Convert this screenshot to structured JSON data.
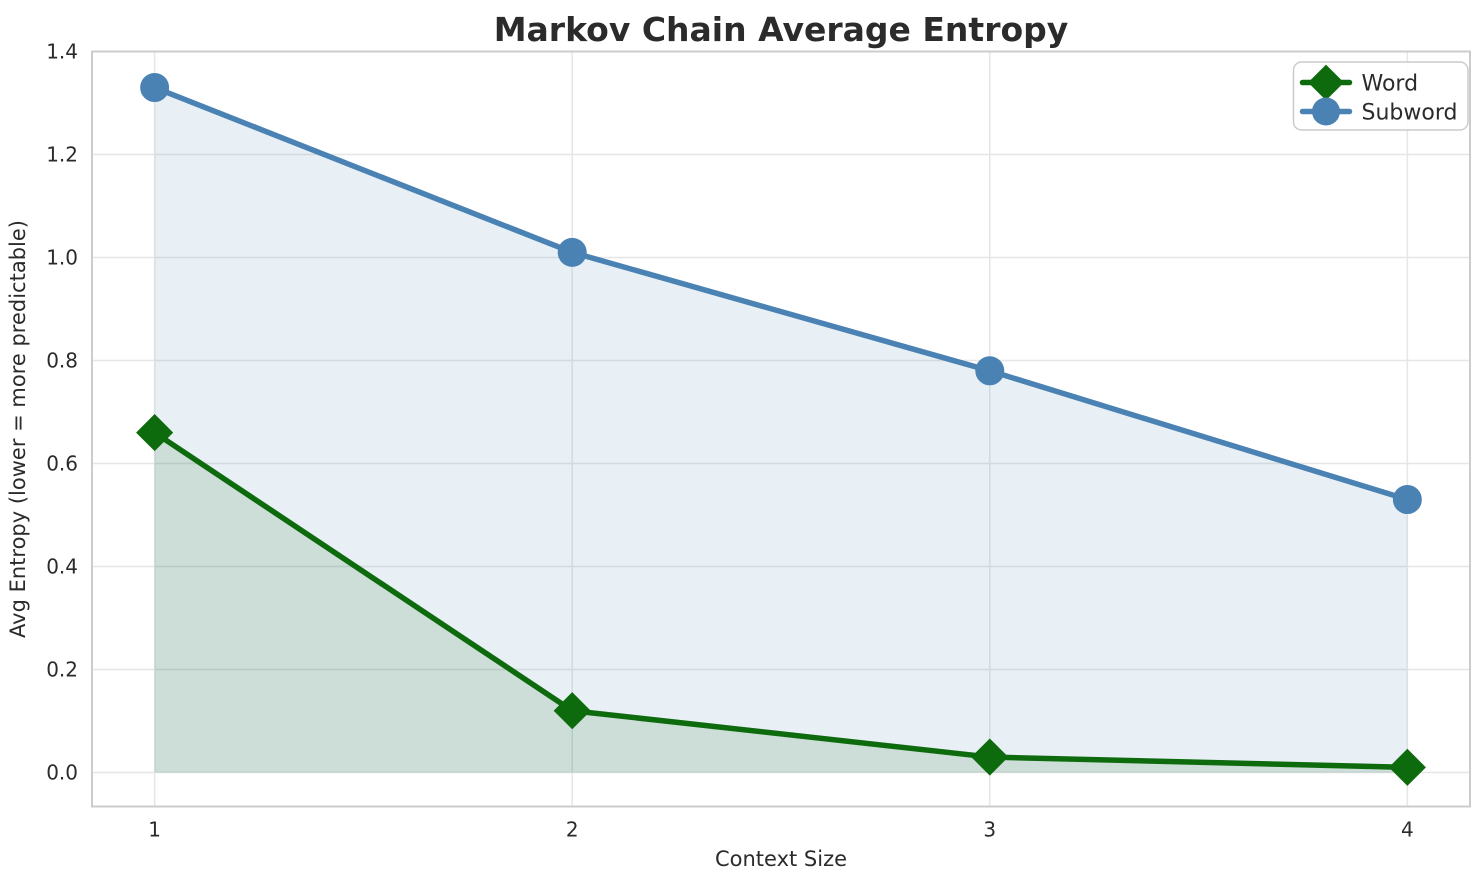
{
  "chart_data": {
    "type": "line",
    "title": "Markov Chain Average Entropy",
    "xlabel": "Context Size",
    "ylabel": "Avg Entropy (lower = more predictable)",
    "x": [
      1,
      2,
      3,
      4
    ],
    "series": [
      {
        "name": "Word",
        "values": [
          0.66,
          0.12,
          0.03,
          0.01
        ],
        "color": "#0d6b0d",
        "marker": "diamond",
        "fill_to_zero": true
      },
      {
        "name": "Subword",
        "values": [
          1.33,
          1.01,
          0.78,
          0.53
        ],
        "color": "#4a82b4",
        "marker": "circle",
        "fill_to_zero": true
      }
    ],
    "xlim": [
      0.85,
      4.15
    ],
    "ylim": [
      -0.066,
      1.4
    ],
    "xticks": {
      "values": [
        1,
        2,
        3,
        4
      ],
      "labels": [
        "1",
        "2",
        "3",
        "4"
      ]
    },
    "yticks": {
      "values": [
        0.0,
        0.2,
        0.4,
        0.6,
        0.8,
        1.0,
        1.2,
        1.4
      ],
      "labels": [
        "0.0",
        "0.2",
        "0.4",
        "0.6",
        "0.8",
        "1.0",
        "1.2",
        "1.4"
      ]
    },
    "grid": true,
    "legend": {
      "position": "upper right",
      "entries": [
        "Word",
        "Subword"
      ]
    },
    "styles": {
      "grid_color": "#e6e6e6",
      "spine_color": "#cccccc",
      "text_color": "#2b2b2b",
      "title_color": "#2b2b2b",
      "fill_opacity": 0.13,
      "legend_border_color": "#cccccc",
      "legend_background": "#ffffff"
    }
  }
}
